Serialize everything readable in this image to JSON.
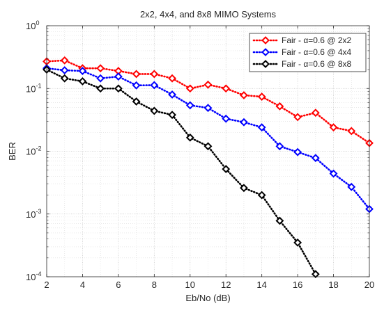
{
  "chart_data": {
    "type": "line",
    "title": "2x2, 4x4, and 8x8 MIMO Systems",
    "xlabel": "Eb/No (dB)",
    "ylabel": "BER",
    "xlim": [
      2,
      20
    ],
    "ylim": [
      0.0001,
      1
    ],
    "yscale": "log",
    "grid": true,
    "minor_grid": true,
    "legend_position": "top-right",
    "x_ticks": [
      2,
      4,
      6,
      8,
      10,
      12,
      14,
      16,
      18,
      20
    ],
    "y_tick_base": "10",
    "y_tick_exponents": [
      "-4",
      "-3",
      "-2",
      "-1",
      "0"
    ],
    "series": [
      {
        "legend_prefix": "Fair -",
        "alpha_label": "α=0.6 @ 2x2",
        "color": "#ff0000",
        "marker": "diamond",
        "line_style": "dotted",
        "x": [
          2,
          3,
          4,
          5,
          6,
          7,
          8,
          9,
          10,
          11,
          12,
          13,
          14,
          15,
          16,
          17,
          18,
          19,
          20
        ],
        "y": [
          0.27,
          0.28,
          0.21,
          0.21,
          0.19,
          0.17,
          0.17,
          0.145,
          0.1,
          0.115,
          0.1,
          0.078,
          0.074,
          0.052,
          0.035,
          0.041,
          0.024,
          0.021,
          0.0135
        ]
      },
      {
        "legend_prefix": "Fair -",
        "alpha_label": "α=0.6 @ 4x4",
        "color": "#0000ff",
        "marker": "diamond",
        "line_style": "dotted",
        "x": [
          2,
          3,
          4,
          5,
          6,
          7,
          8,
          9,
          10,
          11,
          12,
          13,
          14,
          15,
          16,
          17,
          18,
          19,
          20
        ],
        "y": [
          0.21,
          0.195,
          0.19,
          0.145,
          0.155,
          0.112,
          0.113,
          0.08,
          0.054,
          0.049,
          0.033,
          0.029,
          0.024,
          0.012,
          0.0097,
          0.0078,
          0.0044,
          0.0027,
          0.0012
        ]
      },
      {
        "legend_prefix": "Fair -",
        "alpha_label": "α=0.6 @ 8x8",
        "color": "#000000",
        "marker": "diamond",
        "line_style": "dotted",
        "x": [
          2,
          3,
          4,
          5,
          6,
          7,
          8,
          9,
          10,
          11,
          12,
          13,
          14,
          15,
          16,
          17
        ],
        "y": [
          0.2,
          0.145,
          0.13,
          0.1,
          0.1,
          0.062,
          0.044,
          0.038,
          0.0165,
          0.012,
          0.0052,
          0.0026,
          0.002,
          0.00078,
          0.00035,
          0.00011
        ]
      }
    ]
  }
}
